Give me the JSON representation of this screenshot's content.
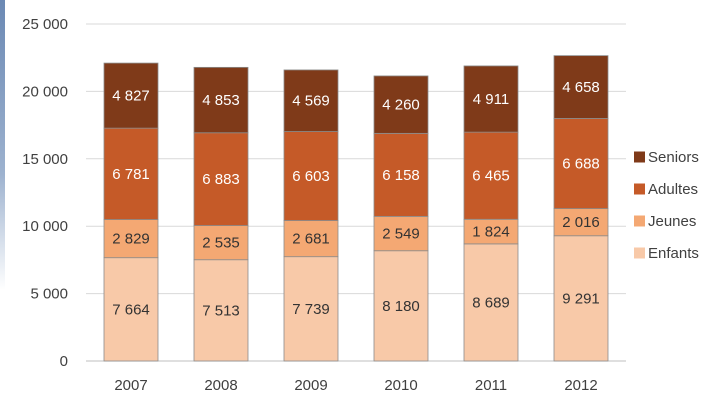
{
  "chart_data": {
    "type": "bar",
    "stacked": true,
    "categories": [
      "2007",
      "2008",
      "2009",
      "2010",
      "2011",
      "2012"
    ],
    "series": [
      {
        "name": "Enfants",
        "values": [
          7664,
          7513,
          7739,
          8180,
          8689,
          9291
        ],
        "labels": [
          "7 664",
          "7 513",
          "7 739",
          "8 180",
          "8 689",
          "9 291"
        ],
        "color": "#f8c9a8",
        "label_color": "#333333"
      },
      {
        "name": "Jeunes",
        "values": [
          2829,
          2535,
          2681,
          2549,
          1824,
          2016
        ],
        "labels": [
          "2 829",
          "2 535",
          "2 681",
          "2 549",
          "1 824",
          "2 016"
        ],
        "color": "#f4a873",
        "label_color": "#333333"
      },
      {
        "name": "Adultes",
        "values": [
          6781,
          6883,
          6603,
          6158,
          6465,
          6688
        ],
        "labels": [
          "6 781",
          "6 883",
          "6 603",
          "6 158",
          "6 465",
          "6 688"
        ],
        "color": "#c55a28",
        "label_color": "#ffffff"
      },
      {
        "name": "Seniors",
        "values": [
          4827,
          4853,
          4569,
          4260,
          4911,
          4658
        ],
        "labels": [
          "4 827",
          "4 853",
          "4 569",
          "4 260",
          "4 911",
          "4 658"
        ],
        "color": "#7f3a19",
        "label_color": "#ffffff"
      }
    ],
    "y_ticks": [
      {
        "value": 0,
        "label": "0"
      },
      {
        "value": 5000,
        "label": "5 000"
      },
      {
        "value": 10000,
        "label": "10 000"
      },
      {
        "value": 15000,
        "label": "15 000"
      },
      {
        "value": 20000,
        "label": "20 000"
      },
      {
        "value": 25000,
        "label": "25 000"
      }
    ],
    "ylim": [
      0,
      25000
    ],
    "legend_position": "right",
    "legend_order": [
      "Seniors",
      "Adultes",
      "Jeunes",
      "Enfants"
    ],
    "grid": true,
    "gridline_color": "#d9d9d9",
    "bar_outline_color": "#8c8c8c"
  }
}
